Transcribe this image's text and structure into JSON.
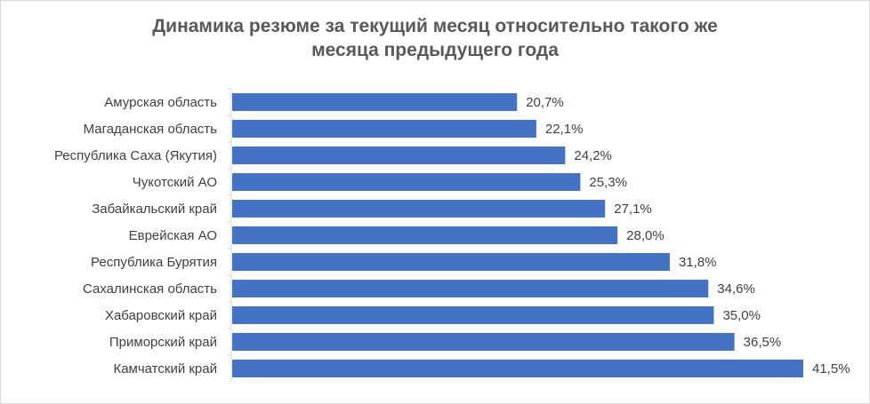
{
  "chart_data": {
    "type": "bar",
    "orientation": "horizontal",
    "title_lines": [
      "Динамика резюме за текущий  месяц относительно  такого же",
      "месяца предыдущего года"
    ],
    "categories": [
      "Амурская область",
      "Магаданская  область",
      "Республика  Саха (Якутия)",
      "Чукотский АО",
      "Забайкальский  край",
      "Еврейская АО",
      "Республика  Бурятия",
      "Сахалинская  область",
      "Хабаровский  край",
      "Приморский край",
      "Камчатский край"
    ],
    "values": [
      20.7,
      22.1,
      24.2,
      25.3,
      27.1,
      28.0,
      31.8,
      34.6,
      35.0,
      36.5,
      41.5
    ],
    "value_labels": [
      "20,7%",
      "22,1%",
      "24,2%",
      "25,3%",
      "27,1%",
      "28,0%",
      "31,8%",
      "34,6%",
      "35,0%",
      "36,5%",
      "41,5%"
    ],
    "xlim": [
      0,
      41.5
    ],
    "grid": false,
    "legend": "none",
    "bar_color": "#4472C4"
  }
}
